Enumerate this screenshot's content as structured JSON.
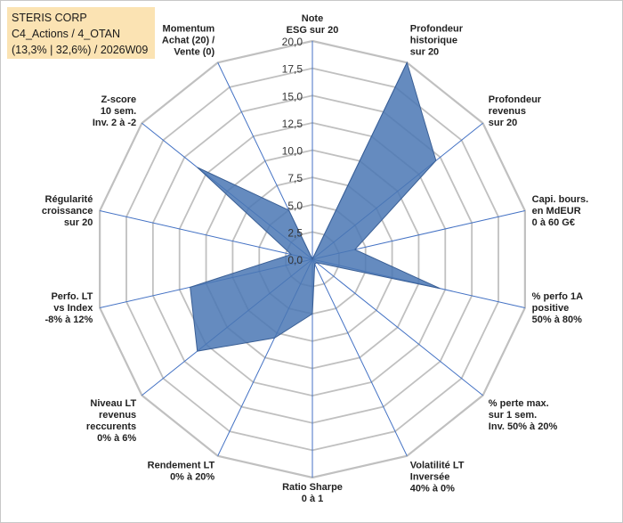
{
  "header": {
    "line1": "STERIS CORP",
    "line2": "C4_Actions / 4_OTAN",
    "line3": "(13,3% | 32,6%) / 2026W09"
  },
  "colors": {
    "fill": "#4a77b4",
    "stroke": "#3a5f95",
    "grid": "#c0c0c0",
    "spoke": "#4472c4",
    "header_bg": "#fbe3b3"
  },
  "chart_data": {
    "type": "radar",
    "title": "STERIS CORP",
    "rmin": 0,
    "rmax": 20,
    "tick_labels": [
      "0,0",
      "2,5",
      "5,0",
      "7,5",
      "10,0",
      "12,5",
      "15,0",
      "17,5",
      "20,0"
    ],
    "axes": [
      {
        "label": [
          "Note",
          "ESG sur 20"
        ],
        "value": 0
      },
      {
        "label": [
          "Profondeur",
          "historique",
          "sur 20"
        ],
        "value": 20
      },
      {
        "label": [
          "Profondeur",
          "revenus",
          "sur 20"
        ],
        "value": 14.5
      },
      {
        "label": [
          "Capi. bours.",
          "en MdEUR",
          "0 à 60 G€"
        ],
        "value": 4
      },
      {
        "label": [
          "% perfo 1A",
          "positive",
          "50% à 80%"
        ],
        "value": 12
      },
      {
        "label": [
          "% perte max.",
          "sur 1 sem.",
          "Inv. 50% à 20%"
        ],
        "value": 0.5
      },
      {
        "label": [
          "Volatilité LT",
          "Inversée",
          "40% à 0%"
        ],
        "value": 0.5
      },
      {
        "label": [
          "Ratio Sharpe",
          "0 à 1"
        ],
        "value": 5
      },
      {
        "label": [
          "Rendement LT",
          "0% à 20%"
        ],
        "value": 8
      },
      {
        "label": [
          "Niveau LT",
          "revenus",
          "reccurents",
          "0% à 6%"
        ],
        "value": 13.5
      },
      {
        "label": [
          "Perfo. LT",
          "vs Index",
          "-8% à 12%"
        ],
        "value": 11.5
      },
      {
        "label": [
          "Régularité",
          "croissance",
          "sur 20"
        ],
        "value": 2
      },
      {
        "label": [
          "Z-score",
          "10 sem.",
          "Inv. 2 à -2"
        ],
        "value": 13.5
      },
      {
        "label": [
          "Momentum",
          "Achat (20) /",
          "Vente (0)"
        ],
        "value": 5
      }
    ]
  }
}
